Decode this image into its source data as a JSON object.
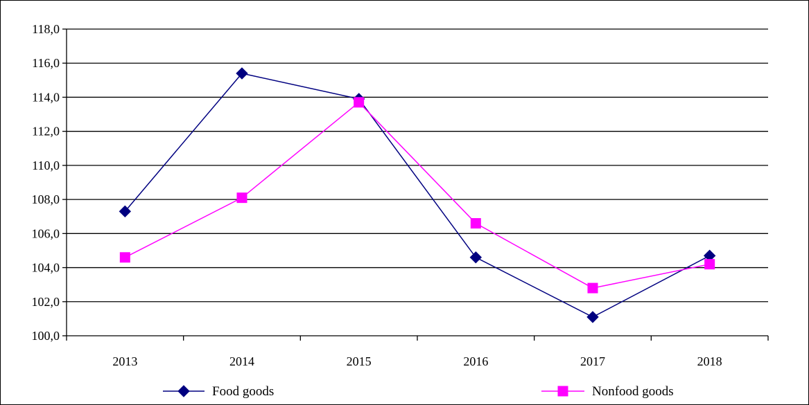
{
  "chart_data": {
    "type": "line",
    "title": "",
    "xlabel": "",
    "ylabel": "",
    "categories": [
      "2013",
      "2014",
      "2015",
      "2016",
      "2017",
      "2018"
    ],
    "ylim": [
      100,
      118
    ],
    "yticks": [
      "100,0",
      "102,0",
      "104,0",
      "106,0",
      "108,0",
      "110,0",
      "112,0",
      "114,0",
      "116,0",
      "118,0"
    ],
    "grid": "horizontal",
    "legend_position": "bottom",
    "series": [
      {
        "name": "Food goods",
        "color": "#000080",
        "marker": "diamond",
        "values": [
          107.3,
          115.4,
          113.9,
          104.6,
          101.1,
          104.7
        ]
      },
      {
        "name": "Nonfood goods",
        "color": "#ff00ff",
        "marker": "square",
        "values": [
          104.6,
          108.1,
          113.7,
          106.6,
          102.8,
          104.2
        ]
      }
    ]
  }
}
